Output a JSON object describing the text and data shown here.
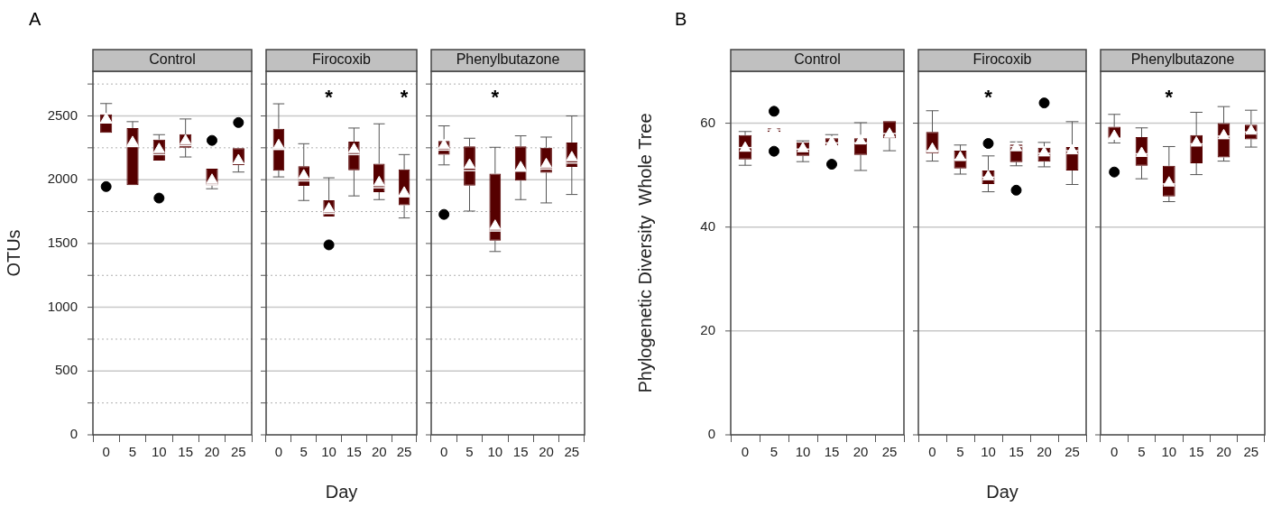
{
  "chart_data": [
    {
      "type": "box",
      "title": "Control",
      "ylabel": "OTUs",
      "categories": [
        "0",
        "5",
        "10",
        "15",
        "20",
        "25"
      ],
      "color": "#560000",
      "ylim": [
        0,
        2850
      ],
      "yticks": [
        0,
        {
          "value": 250,
          "label": null
        },
        500,
        {
          "value": 750,
          "label": null
        },
        1000,
        {
          "value": 1250,
          "label": null
        },
        1500,
        {
          "value": 1750,
          "label": null
        },
        2000,
        {
          "value": 2250,
          "label": null
        },
        2500,
        {
          "value": 2750,
          "label": null
        }
      ],
      "grid": "y",
      "annotations": [
        "A"
      ],
      "boxes": [
        {
          "low": 2367,
          "q1": 2367,
          "median": 2445,
          "q3": 2512,
          "high": 2597,
          "mean": 2474,
          "outliers": [
            1946
          ]
        },
        {
          "low": 1958,
          "q1": 1958,
          "median": 2260,
          "q3": 2405,
          "high": 2455,
          "mean": 2292
        },
        {
          "low": 2150,
          "q1": 2150,
          "median": 2197,
          "q3": 2315,
          "high": 2353,
          "mean": 2237,
          "outliers": [
            1856
          ]
        },
        {
          "low": 2178,
          "q1": 2251,
          "median": 2268,
          "q3": 2356,
          "high": 2476,
          "mean": 2304
        },
        {
          "low": 1929,
          "q1": 1955,
          "median": 1960,
          "q3": 2086,
          "high": 2086,
          "mean": 1996,
          "outliers": [
            2308
          ]
        },
        {
          "low": 2060,
          "q1": 2114,
          "median": 2126,
          "q3": 2247,
          "high": 2247,
          "mean": 2150,
          "outliers": [
            2448
          ]
        }
      ]
    },
    {
      "type": "box",
      "title": "Firocoxib",
      "xlabel": "Day",
      "categories": [
        "0",
        "5",
        "10",
        "15",
        "20",
        "25"
      ],
      "color": "#560000",
      "ylim": [
        0,
        2850
      ],
      "yticks": [
        0,
        {
          "value": 250,
          "label": null
        },
        500,
        {
          "value": 750,
          "label": null
        },
        1000,
        {
          "value": 1250,
          "label": null
        },
        1500,
        {
          "value": 1750,
          "label": null
        },
        2000,
        {
          "value": 2250,
          "label": null
        },
        2500,
        {
          "value": 2750,
          "label": null
        }
      ],
      "grid": "y",
      "tick_labels": "x",
      "annotations": [
        "*",
        "*"
      ],
      "boxes": [
        {
          "low": 2022,
          "q1": 2071,
          "median": 2237,
          "q3": 2400,
          "high": 2595,
          "mean": 2268
        },
        {
          "low": 1837,
          "q1": 1951,
          "median": 1991,
          "q3": 2105,
          "high": 2282,
          "mean": 2031
        },
        {
          "low": 1712,
          "q1": 1712,
          "median": 1735,
          "q3": 1839,
          "high": 2015,
          "mean": 1771,
          "outliers": [
            1489
          ]
        },
        {
          "low": 1873,
          "q1": 2074,
          "median": 2197,
          "q3": 2299,
          "high": 2405,
          "mean": 2237
        },
        {
          "low": 1844,
          "q1": 1903,
          "median": 1937,
          "q3": 2126,
          "high": 2438,
          "mean": 1977
        },
        {
          "low": 1700,
          "q1": 1799,
          "median": 1866,
          "q3": 2081,
          "high": 2197,
          "mean": 1896
        }
      ]
    },
    {
      "type": "box",
      "title": "Phenylbutazone",
      "categories": [
        "0",
        "5",
        "10",
        "15",
        "20",
        "25"
      ],
      "color": "#560000",
      "ylim": [
        0,
        2850
      ],
      "yticks": [
        0,
        {
          "value": 250,
          "label": null
        },
        500,
        {
          "value": 750,
          "label": null
        },
        1000,
        {
          "value": 1250,
          "label": null
        },
        1500,
        {
          "value": 1750,
          "label": null
        },
        2000,
        {
          "value": 2250,
          "label": null
        },
        2500,
        {
          "value": 2750,
          "label": null
        }
      ],
      "grid": "y",
      "tick_labels": "x",
      "annotations": [
        "*"
      ],
      "boxes": [
        {
          "low": 2116,
          "q1": 2195,
          "median": 2232,
          "q3": 2303,
          "high": 2422,
          "mean": 2268,
          "outliers": [
            1728
          ]
        },
        {
          "low": 1754,
          "q1": 1953,
          "median": 2071,
          "q3": 2261,
          "high": 2325,
          "mean": 2114
        },
        {
          "low": 1437,
          "q1": 1522,
          "median": 1598,
          "q3": 2048,
          "high": 2254,
          "mean": 1636
        },
        {
          "low": 1844,
          "q1": 1993,
          "median": 2067,
          "q3": 2261,
          "high": 2344,
          "mean": 2095
        },
        {
          "low": 1818,
          "q1": 2055,
          "median": 2083,
          "q3": 2251,
          "high": 2334,
          "mean": 2119
        },
        {
          "low": 1884,
          "q1": 2100,
          "median": 2131,
          "q3": 2292,
          "high": 2500,
          "mean": 2173
        }
      ]
    },
    {
      "type": "box",
      "title": "Control",
      "ylabel": "Phylogenetic Diversity  Whole Tree",
      "categories": [
        "0",
        "5",
        "10",
        "15",
        "20",
        "25"
      ],
      "color": "#560000",
      "ylim": [
        0,
        70
      ],
      "yticks": [
        0,
        20,
        40,
        60
      ],
      "grid": "y",
      "annotations": [
        "B"
      ],
      "boxes": [
        {
          "low": 51.9,
          "q1": 53.0,
          "median": 55.3,
          "q3": 57.7,
          "high": 58.4,
          "mean": 55.2
        },
        {
          "low": 58.3,
          "q1": 58.3,
          "median": 58.7,
          "q3": 59.0,
          "high": 59.0,
          "mean": 58.6,
          "outliers": [
            62.3,
            54.6
          ]
        },
        {
          "low": 52.6,
          "q1": 53.7,
          "median": 55.0,
          "q3": 56.3,
          "high": 56.6,
          "mean": 55.1
        },
        {
          "low": 55.7,
          "q1": 55.7,
          "median": 56.2,
          "q3": 57.1,
          "high": 57.8,
          "mean": 56.3,
          "outliers": [
            52.1
          ]
        },
        {
          "low": 50.9,
          "q1": 53.9,
          "median": 56.2,
          "q3": 57.1,
          "high": 60.1,
          "mean": 56.6
        },
        {
          "low": 54.7,
          "q1": 57.1,
          "median": 58.0,
          "q3": 60.4,
          "high": 60.4,
          "mean": 57.9
        }
      ]
    },
    {
      "type": "box",
      "title": "Firocoxib",
      "xlabel": "Day",
      "categories": [
        "0",
        "5",
        "10",
        "15",
        "20",
        "25"
      ],
      "color": "#560000",
      "ylim": [
        0,
        70
      ],
      "yticks": [
        0,
        20,
        40,
        60
      ],
      "grid": "y",
      "tick_labels": "x",
      "annotations": [
        "*"
      ],
      "boxes": [
        {
          "low": 52.7,
          "q1": 54.2,
          "median": 54.7,
          "q3": 58.3,
          "high": 62.4,
          "mean": 55.0
        },
        {
          "low": 50.2,
          "q1": 51.3,
          "median": 53.0,
          "q3": 54.7,
          "high": 55.8,
          "mean": 53.4
        },
        {
          "low": 46.8,
          "q1": 48.3,
          "median": 49.6,
          "q3": 50.9,
          "high": 53.7,
          "mean": 49.7,
          "outliers": [
            56.1
          ]
        },
        {
          "low": 51.8,
          "q1": 52.5,
          "median": 55.5,
          "q3": 55.9,
          "high": 56.4,
          "mean": 55.3,
          "outliers": [
            47.1
          ]
        },
        {
          "low": 51.6,
          "q1": 52.6,
          "median": 54.2,
          "q3": 55.3,
          "high": 56.3,
          "mean": 54.3,
          "outliers": [
            63.9
          ]
        },
        {
          "low": 48.2,
          "q1": 50.9,
          "median": 54.7,
          "q3": 55.4,
          "high": 60.3,
          "mean": 54.7
        }
      ]
    },
    {
      "type": "box",
      "title": "Phenylbutazone",
      "categories": [
        "0",
        "5",
        "10",
        "15",
        "20",
        "25"
      ],
      "color": "#560000",
      "ylim": [
        0,
        70
      ],
      "yticks": [
        0,
        20,
        40,
        60
      ],
      "grid": "y",
      "tick_labels": "x",
      "annotations": [
        "*"
      ],
      "boxes": [
        {
          "low": 56.2,
          "q1": 56.9,
          "median": 57.1,
          "q3": 59.3,
          "high": 61.7,
          "mean": 57.5,
          "outliers": [
            50.6
          ]
        },
        {
          "low": 49.3,
          "q1": 51.8,
          "median": 54.1,
          "q3": 57.3,
          "high": 59.1,
          "mean": 54.2
        },
        {
          "low": 44.9,
          "q1": 45.9,
          "median": 48.3,
          "q3": 51.8,
          "high": 55.5,
          "mean": 48.5
        },
        {
          "low": 50.1,
          "q1": 52.3,
          "median": 56.0,
          "q3": 57.7,
          "high": 62.1,
          "mean": 56.2
        },
        {
          "low": 52.7,
          "q1": 53.4,
          "median": 57.5,
          "q3": 60.0,
          "high": 63.2,
          "mean": 57.6
        },
        {
          "low": 55.4,
          "q1": 56.9,
          "median": 58.3,
          "q3": 59.7,
          "high": 62.5,
          "mean": 58.5
        }
      ]
    }
  ]
}
